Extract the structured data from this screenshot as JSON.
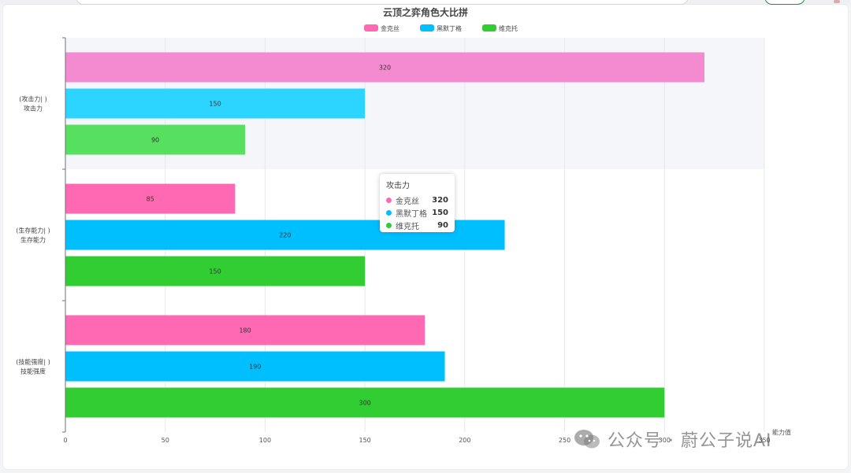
{
  "chart_data": {
    "type": "bar",
    "orientation": "horizontal",
    "title": "云顶之弈角色大比拼",
    "categories": [
      {
        "line1": "(攻击力| )",
        "line2": "攻击力"
      },
      {
        "line1": "(生存能力| )",
        "line2": "生存能力"
      },
      {
        "line1": "(技能强度| )",
        "line2": "技能强度"
      }
    ],
    "series": [
      {
        "name": "金克丝",
        "values": [
          320,
          85,
          180
        ]
      },
      {
        "name": "黑默丁格",
        "values": [
          150,
          220,
          190
        ]
      },
      {
        "name": "维克托",
        "values": [
          90,
          150,
          300
        ]
      }
    ],
    "xlabel": "能力值",
    "xlim": [
      0,
      350
    ],
    "xticks": [
      0,
      50,
      100,
      150,
      200,
      250,
      300,
      350
    ],
    "grid": true,
    "legend_position": "top-center",
    "highlighted_category": 0,
    "colors": {
      "series": [
        "#ff69b4",
        "#00bfff",
        "#32cd32"
      ],
      "highlighted_series": [
        "#f48ad0",
        "#2cd5ff",
        "#57e05f"
      ]
    }
  },
  "tooltip": {
    "title": "攻击力",
    "rows": [
      {
        "name": "金克丝",
        "value": "320"
      },
      {
        "name": "黑默丁格",
        "value": "150"
      },
      {
        "name": "维克托",
        "value": "90"
      }
    ]
  },
  "watermark": {
    "text": "公众号 · 蔚公子说AI"
  }
}
